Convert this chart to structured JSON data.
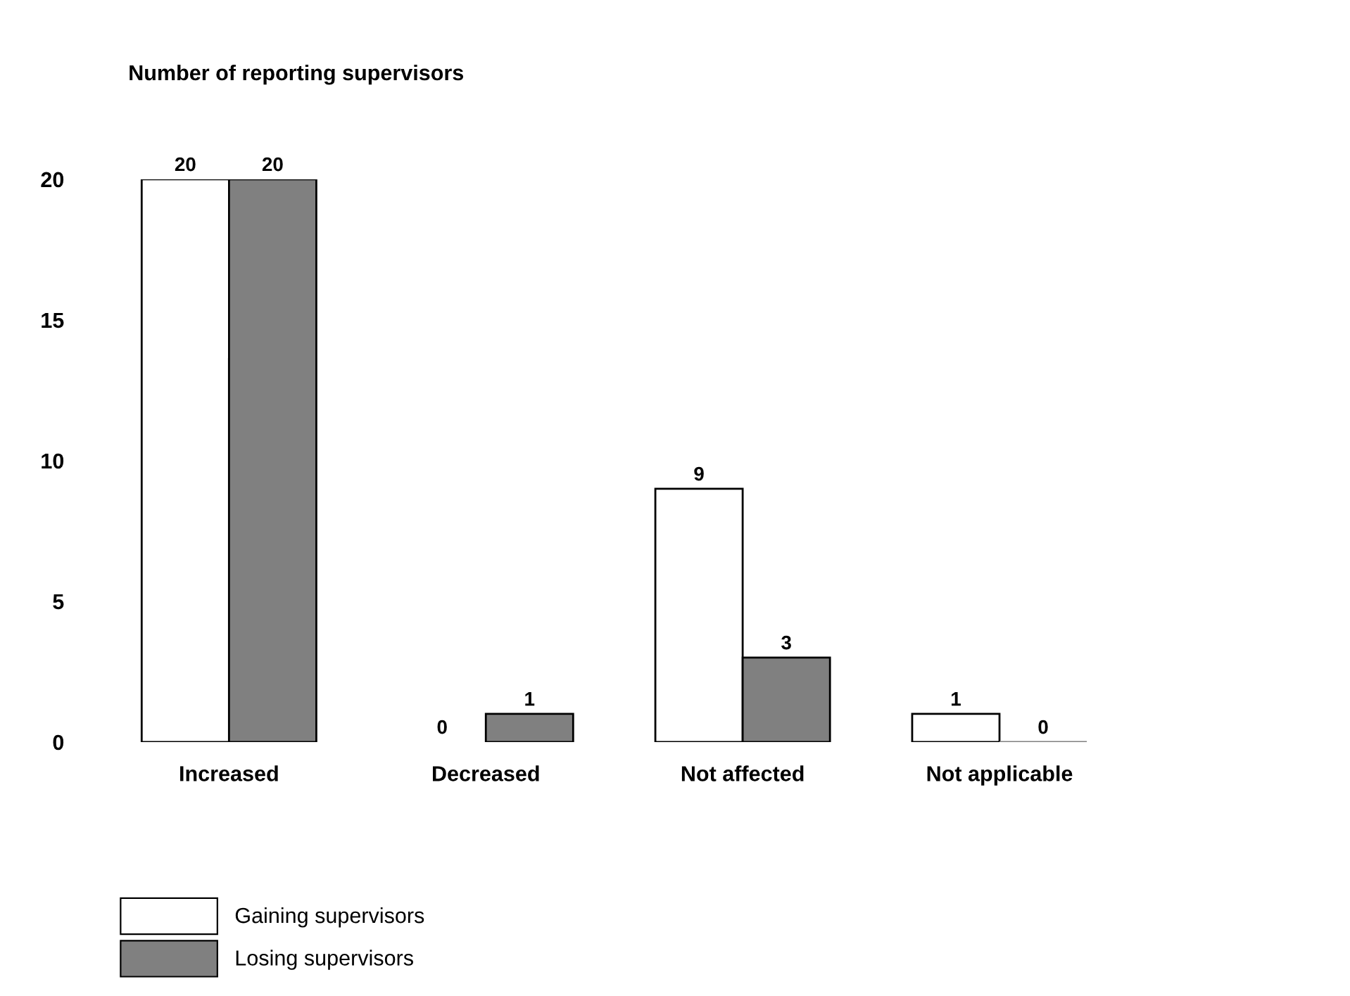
{
  "chart_data": {
    "type": "bar",
    "ylabel": "Number of reporting supervisors",
    "categories": [
      "Increased",
      "Decreased",
      "Not affected",
      "Not applicable"
    ],
    "series": [
      {
        "name": "Gaining supervisors",
        "color": "#ffffff",
        "values": [
          20,
          0,
          9,
          1
        ]
      },
      {
        "name": "Losing supervisors",
        "color": "#808080",
        "values": [
          20,
          1,
          3,
          0
        ]
      }
    ],
    "ylim": [
      0,
      20
    ],
    "yticks": [
      0,
      5,
      10,
      15,
      20
    ],
    "data_labels": true,
    "grid": false,
    "legend": "bottom left"
  }
}
